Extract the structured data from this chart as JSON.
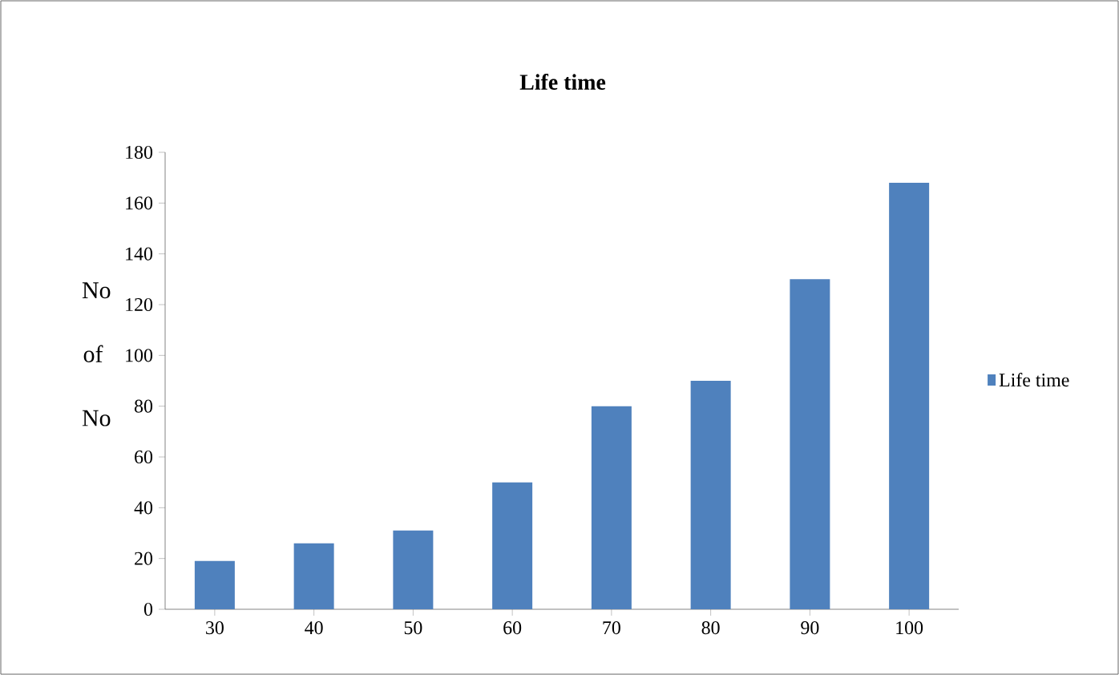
{
  "chart_data": {
    "type": "bar",
    "title": "Life time",
    "ylabel": "No of No",
    "categories": [
      "30",
      "40",
      "50",
      "60",
      "70",
      "80",
      "90",
      "100"
    ],
    "series": [
      {
        "name": "Life time",
        "color": "#4f81bd",
        "values": [
          19,
          26,
          31,
          50,
          80,
          90,
          130,
          168
        ]
      }
    ],
    "ylim": [
      0,
      180
    ],
    "yticks": [
      0,
      20,
      40,
      60,
      80,
      100,
      120,
      140,
      160,
      180
    ],
    "legend": "right",
    "grid": false
  }
}
